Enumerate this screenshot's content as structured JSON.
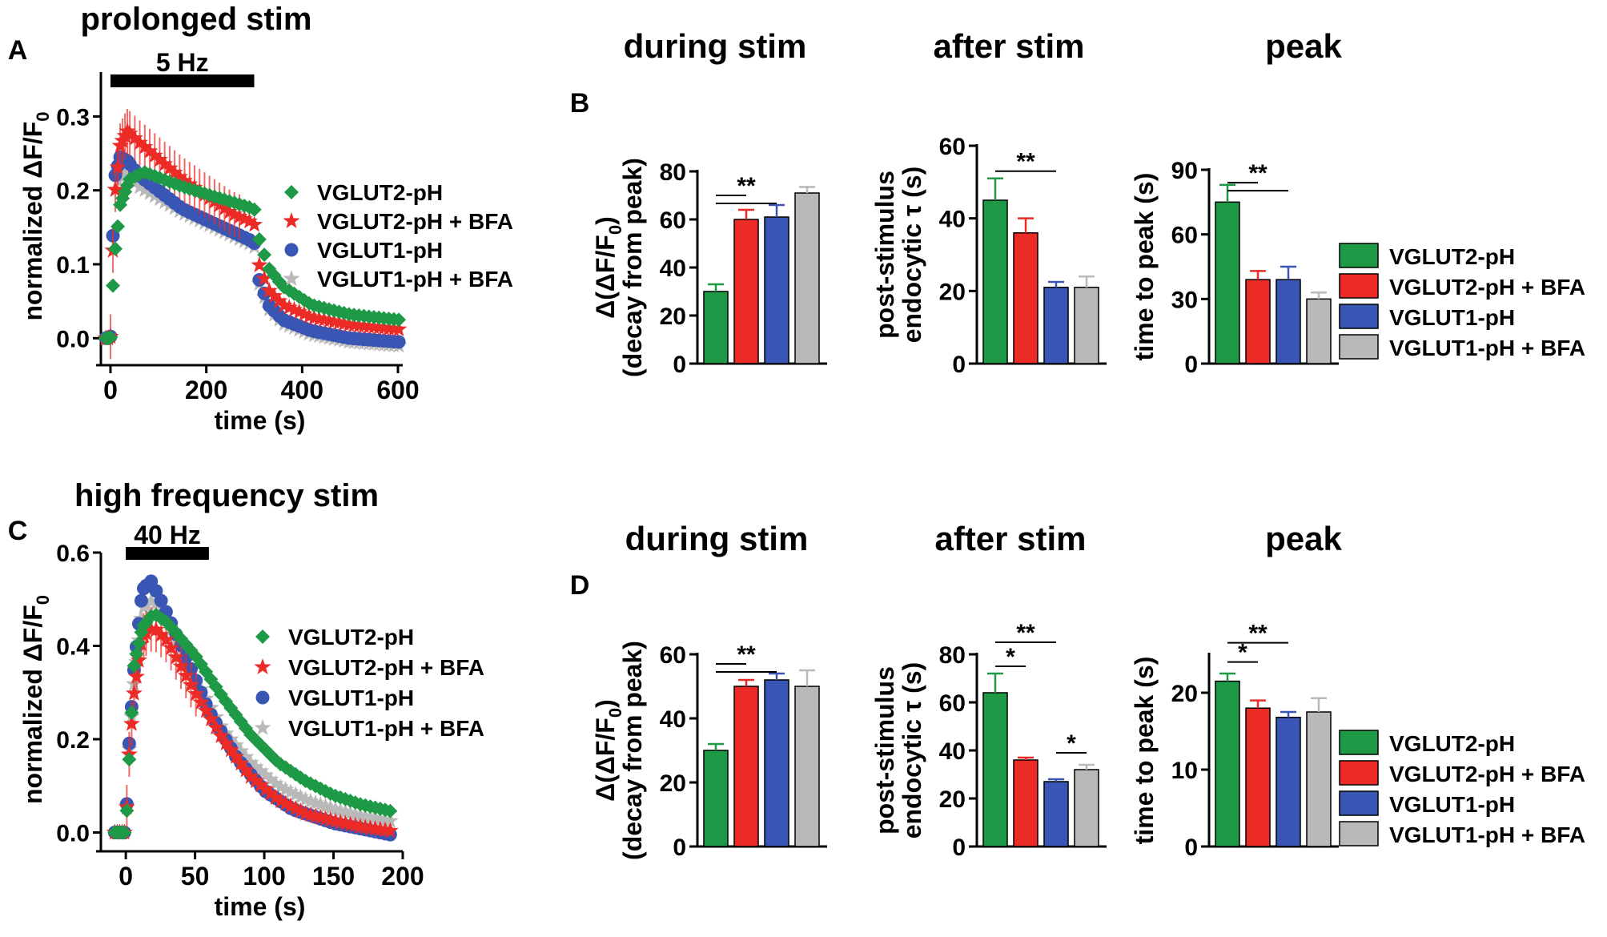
{
  "colors": {
    "vglut2": "#1e9a46",
    "vglut2_bfa": "#ec2a26",
    "vglut1": "#3a56b5",
    "vglut1_bfa": "#b9b9b9",
    "black": "#000000"
  },
  "legend_labels": [
    "VGLUT2-pH",
    "VGLUT2-pH + BFA",
    "VGLUT1-pH",
    "VGLUT1-pH + BFA"
  ],
  "chart_data": [
    {
      "id": "A",
      "panel_label": "A",
      "type": "scatter",
      "title": "prolonged stim",
      "stim_label": "5 Hz",
      "stim_range": [
        0,
        300
      ],
      "xlabel": "time (s)",
      "ylabel": "normalized ΔF/F",
      "ylabel_sub": "0",
      "xlim": [
        -20,
        610
      ],
      "ylim": [
        -0.03,
        0.36
      ],
      "xticks": [
        0,
        200,
        400,
        600
      ],
      "xtick_labels": [
        "0",
        "200",
        "400",
        "600"
      ],
      "yticks": [
        0,
        0.1,
        0.2,
        0.3
      ],
      "ytick_labels": [
        "0.0",
        "0.1",
        "0.2",
        "0.3"
      ],
      "legend_placement": "right",
      "series": [
        {
          "name": "VGLUT2-pH",
          "marker": "diamond",
          "key": [
            [
              -10,
              0
            ],
            [
              0,
              0
            ],
            [
              4,
              0.06
            ],
            [
              10,
              0.12
            ],
            [
              20,
              0.18
            ],
            [
              40,
              0.215
            ],
            [
              70,
              0.225
            ],
            [
              150,
              0.205
            ],
            [
              250,
              0.185
            ],
            [
              300,
              0.175
            ],
            [
              310,
              0.135
            ],
            [
              330,
              0.095
            ],
            [
              360,
              0.07
            ],
            [
              420,
              0.045
            ],
            [
              500,
              0.032
            ],
            [
              600,
              0.025
            ]
          ]
        },
        {
          "name": "VGLUT2-pH + BFA",
          "marker": "star",
          "key": [
            [
              -10,
              0
            ],
            [
              0,
              0
            ],
            [
              4,
              0.1
            ],
            [
              10,
              0.2
            ],
            [
              20,
              0.26
            ],
            [
              35,
              0.28
            ],
            [
              60,
              0.265
            ],
            [
              150,
              0.215
            ],
            [
              250,
              0.17
            ],
            [
              300,
              0.155
            ],
            [
              310,
              0.1
            ],
            [
              330,
              0.065
            ],
            [
              360,
              0.045
            ],
            [
              420,
              0.028
            ],
            [
              500,
              0.018
            ],
            [
              600,
              0.012
            ]
          ]
        },
        {
          "name": "VGLUT1-pH",
          "marker": "circle",
          "key": [
            [
              -10,
              0
            ],
            [
              0,
              0
            ],
            [
              4,
              0.12
            ],
            [
              10,
              0.22
            ],
            [
              20,
              0.245
            ],
            [
              35,
              0.24
            ],
            [
              60,
              0.22
            ],
            [
              150,
              0.175
            ],
            [
              250,
              0.145
            ],
            [
              300,
              0.13
            ],
            [
              310,
              0.08
            ],
            [
              330,
              0.045
            ],
            [
              360,
              0.025
            ],
            [
              420,
              0.01
            ],
            [
              500,
              0
            ],
            [
              600,
              -0.005
            ]
          ]
        },
        {
          "name": "VGLUT1-pH + BFA",
          "marker": "star",
          "key": [
            [
              -10,
              0
            ],
            [
              0,
              0
            ],
            [
              4,
              0.1
            ],
            [
              10,
              0.2
            ],
            [
              20,
              0.225
            ],
            [
              35,
              0.22
            ],
            [
              60,
              0.205
            ],
            [
              150,
              0.17
            ],
            [
              250,
              0.14
            ],
            [
              300,
              0.125
            ],
            [
              310,
              0.075
            ],
            [
              330,
              0.04
            ],
            [
              360,
              0.02
            ],
            [
              420,
              0.005
            ],
            [
              500,
              -0.005
            ],
            [
              600,
              -0.01
            ]
          ]
        }
      ]
    },
    {
      "id": "C",
      "panel_label": "C",
      "type": "scatter",
      "title": "high frequency stim",
      "stim_label": "40 Hz",
      "stim_range": [
        0,
        60
      ],
      "xlabel": "time (s)",
      "ylabel": "normalized ΔF/F",
      "ylabel_sub": "0",
      "xlim": [
        -18,
        200
      ],
      "ylim": [
        -0.03,
        0.6
      ],
      "xticks": [
        0,
        50,
        100,
        150,
        200
      ],
      "xtick_labels": [
        "0",
        "50",
        "100",
        "150",
        "200"
      ],
      "yticks": [
        0,
        0.2,
        0.4,
        0.6
      ],
      "ytick_labels": [
        "0.0",
        "0.2",
        "0.4",
        "0.6"
      ],
      "legend_placement": "right",
      "series": [
        {
          "name": "VGLUT2-pH",
          "marker": "diamond",
          "key": [
            [
              -15,
              0
            ],
            [
              0,
              0
            ],
            [
              2,
              0.13
            ],
            [
              6,
              0.36
            ],
            [
              12,
              0.44
            ],
            [
              20,
              0.47
            ],
            [
              30,
              0.45
            ],
            [
              50,
              0.38
            ],
            [
              70,
              0.29
            ],
            [
              90,
              0.21
            ],
            [
              110,
              0.15
            ],
            [
              130,
              0.11
            ],
            [
              150,
              0.08
            ],
            [
              170,
              0.06
            ],
            [
              200,
              0.04
            ]
          ]
        },
        {
          "name": "VGLUT2-pH + BFA",
          "marker": "star",
          "key": [
            [
              -15,
              0
            ],
            [
              0,
              0
            ],
            [
              2,
              0.15
            ],
            [
              6,
              0.3
            ],
            [
              12,
              0.42
            ],
            [
              20,
              0.44
            ],
            [
              30,
              0.41
            ],
            [
              50,
              0.3
            ],
            [
              70,
              0.2
            ],
            [
              90,
              0.12
            ],
            [
              110,
              0.07
            ],
            [
              130,
              0.04
            ],
            [
              150,
              0.025
            ],
            [
              170,
              0.012
            ],
            [
              200,
              0
            ]
          ]
        },
        {
          "name": "VGLUT1-pH",
          "marker": "circle",
          "key": [
            [
              -15,
              0
            ],
            [
              0,
              0
            ],
            [
              2,
              0.17
            ],
            [
              6,
              0.35
            ],
            [
              12,
              0.52
            ],
            [
              18,
              0.54
            ],
            [
              25,
              0.5
            ],
            [
              40,
              0.4
            ],
            [
              60,
              0.26
            ],
            [
              80,
              0.16
            ],
            [
              100,
              0.09
            ],
            [
              120,
              0.05
            ],
            [
              150,
              0.02
            ],
            [
              200,
              -0.01
            ]
          ]
        },
        {
          "name": "VGLUT1-pH + BFA",
          "marker": "star",
          "key": [
            [
              -15,
              0
            ],
            [
              0,
              0
            ],
            [
              2,
              0.16
            ],
            [
              6,
              0.32
            ],
            [
              12,
              0.48
            ],
            [
              20,
              0.5
            ],
            [
              30,
              0.45
            ],
            [
              50,
              0.33
            ],
            [
              70,
              0.22
            ],
            [
              90,
              0.15
            ],
            [
              110,
              0.1
            ],
            [
              130,
              0.07
            ],
            [
              150,
              0.05
            ],
            [
              170,
              0.035
            ],
            [
              200,
              0.02
            ]
          ]
        }
      ]
    },
    {
      "id": "B1",
      "panel_label": "B",
      "type": "bar",
      "title": "during stim",
      "ylabel_lines": [
        "Δ(ΔF/F",
        "(decay from peak)"
      ],
      "ylabel_sub": "0",
      "ylim": [
        0,
        80
      ],
      "yticks": [
        0,
        20,
        40,
        60,
        80
      ],
      "ytick_labels": [
        "0",
        "20",
        "40",
        "60",
        "80"
      ],
      "categories": [
        "VGLUT2-pH",
        "VGLUT2-pH + BFA",
        "VGLUT1-pH",
        "VGLUT1-pH + BFA"
      ],
      "values": [
        30,
        60,
        61,
        71
      ],
      "errors": [
        3,
        4,
        5,
        2.5
      ],
      "significance": [
        {
          "label": "**",
          "from": 0,
          "to": [
            1,
            2
          ],
          "y": 70
        }
      ]
    },
    {
      "id": "B2",
      "type": "bar",
      "title": "after stim",
      "ylabel_lines": [
        "post-stimulus",
        "endocytic τ (s)"
      ],
      "ylim": [
        0,
        60
      ],
      "yticks": [
        0,
        20,
        40,
        60
      ],
      "ytick_labels": [
        "0",
        "20",
        "40",
        "60"
      ],
      "categories": [
        "VGLUT2-pH",
        "VGLUT2-pH + BFA",
        "VGLUT1-pH",
        "VGLUT1-pH + BFA"
      ],
      "values": [
        45,
        36,
        21,
        21
      ],
      "errors": [
        6,
        4,
        1.5,
        3
      ],
      "significance": [
        {
          "label": "**",
          "from": 0,
          "to": [
            2
          ],
          "y": 53
        }
      ]
    },
    {
      "id": "B3",
      "type": "bar",
      "title": "peak",
      "ylabel_lines": [
        "time to peak (s)"
      ],
      "ylim": [
        0,
        90
      ],
      "yticks": [
        0,
        30,
        60,
        90
      ],
      "ytick_labels": [
        "0",
        "30",
        "60",
        "90"
      ],
      "categories": [
        "VGLUT2-pH",
        "VGLUT2-pH + BFA",
        "VGLUT1-pH",
        "VGLUT1-pH + BFA"
      ],
      "values": [
        75,
        39,
        39,
        30
      ],
      "errors": [
        8,
        4,
        6,
        3
      ],
      "significance": [
        {
          "label": "**",
          "from": 0,
          "to": [
            1,
            2
          ],
          "y": 84
        }
      ],
      "legend": true
    },
    {
      "id": "D1",
      "panel_label": "D",
      "type": "bar",
      "title": "during stim",
      "ylabel_lines": [
        "Δ(ΔF/F",
        "(decay from peak)"
      ],
      "ylabel_sub": "0",
      "ylim": [
        0,
        60
      ],
      "yticks": [
        0,
        20,
        40,
        60
      ],
      "ytick_labels": [
        "0",
        "20",
        "40",
        "60"
      ],
      "categories": [
        "VGLUT2-pH",
        "VGLUT2-pH + BFA",
        "VGLUT1-pH",
        "VGLUT1-pH + BFA"
      ],
      "values": [
        30,
        50,
        52,
        50
      ],
      "errors": [
        2,
        2,
        2,
        5
      ],
      "significance": [
        {
          "label": "**",
          "from": 0,
          "to": [
            1,
            2
          ],
          "y": 57
        }
      ]
    },
    {
      "id": "D2",
      "type": "bar",
      "title": "after stim",
      "ylabel_lines": [
        "post-stimulus",
        "endocytic τ (s)"
      ],
      "ylim": [
        0,
        80
      ],
      "yticks": [
        0,
        20,
        40,
        60,
        80
      ],
      "ytick_labels": [
        "0",
        "20",
        "40",
        "60",
        "80"
      ],
      "categories": [
        "VGLUT2-pH",
        "VGLUT2-pH + BFA",
        "VGLUT1-pH",
        "VGLUT1-pH + BFA"
      ],
      "values": [
        64,
        36,
        27,
        32
      ],
      "errors": [
        8,
        1,
        1,
        2
      ],
      "significance": [
        {
          "label": "**",
          "from": 0,
          "to": [
            2
          ],
          "y": 85
        },
        {
          "label": "*",
          "from": 0,
          "to": [
            1
          ],
          "y": 75
        },
        {
          "label": "*",
          "from": 2,
          "to": [
            3
          ],
          "y": 39
        }
      ]
    },
    {
      "id": "D3",
      "type": "bar",
      "title": "peak",
      "ylabel_lines": [
        "time to peak (s)"
      ],
      "ylim": [
        0,
        25
      ],
      "yticks": [
        0,
        10,
        20
      ],
      "ytick_labels": [
        "0",
        "10",
        "20"
      ],
      "categories": [
        "VGLUT2-pH",
        "VGLUT2-pH + BFA",
        "VGLUT1-pH",
        "VGLUT1-pH + BFA"
      ],
      "values": [
        21.5,
        18,
        16.8,
        17.5
      ],
      "errors": [
        1,
        1,
        0.7,
        1.8
      ],
      "significance": [
        {
          "label": "**",
          "from": 0,
          "to": [
            2
          ],
          "y": 26.5
        },
        {
          "label": "*",
          "from": 0,
          "to": [
            1
          ],
          "y": 24
        }
      ],
      "legend": true
    }
  ]
}
